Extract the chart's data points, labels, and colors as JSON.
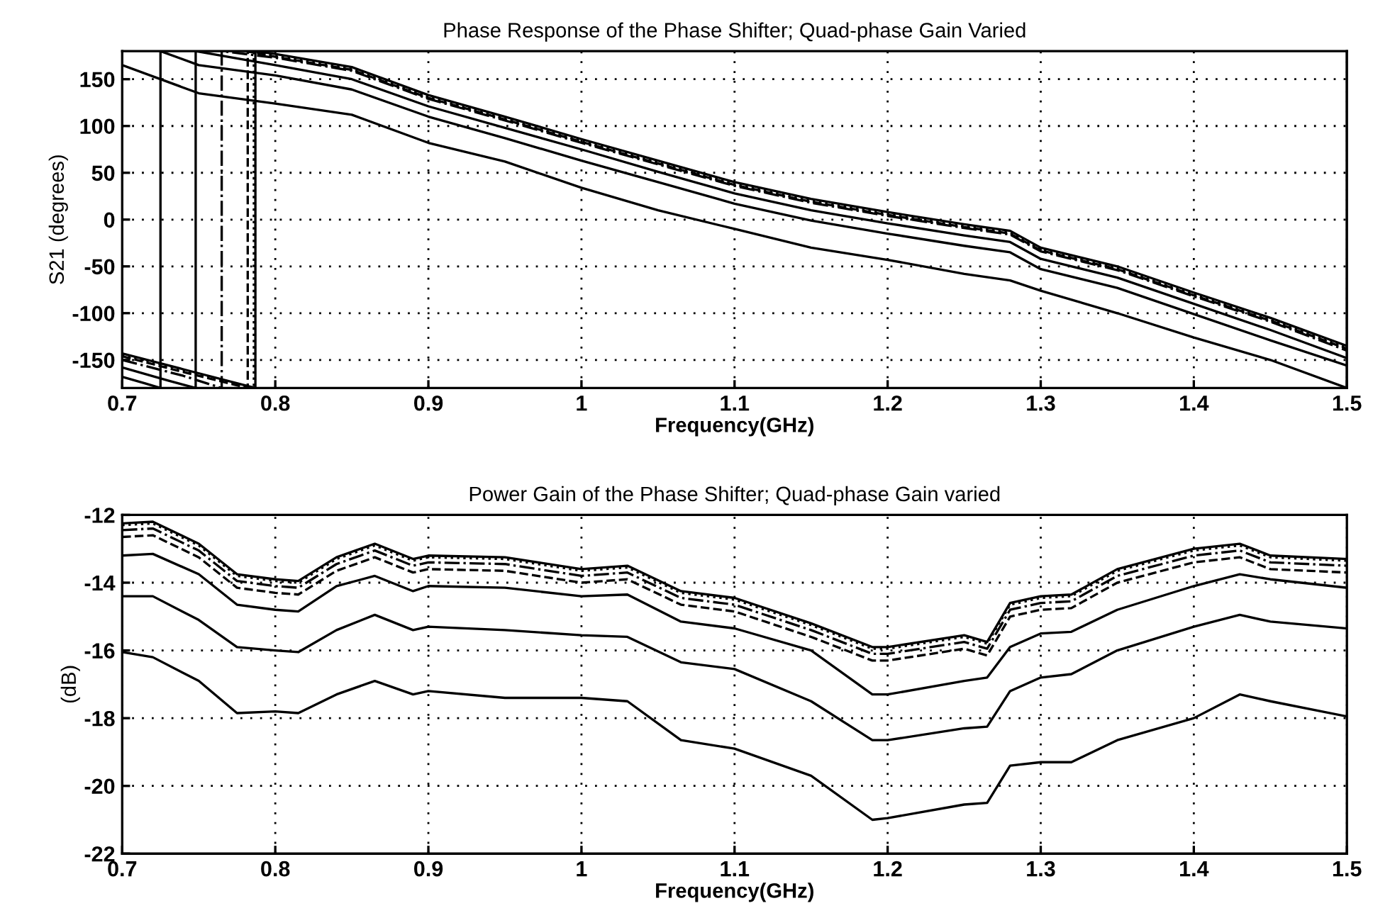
{
  "chart_data": [
    {
      "type": "line",
      "title": "Phase Response of the Phase Shifter; Quad-phase Gain Varied",
      "xlabel": "Frequency(GHz)",
      "ylabel": "S21 (degrees)",
      "xlim": [
        0.7,
        1.5
      ],
      "ylim": [
        -180,
        180
      ],
      "xticks": [
        0.7,
        0.8,
        0.9,
        1,
        1.1,
        1.2,
        1.3,
        1.4,
        1.5
      ],
      "yticks": [
        -150,
        -100,
        -50,
        0,
        50,
        100,
        150
      ],
      "grid": true,
      "series": [
        {
          "color": "#000000",
          "line_style": "solid",
          "x": [
            0.7,
            0.74,
            0.787,
            0.787,
            0.8,
            0.85,
            0.9,
            0.95,
            1.0,
            1.05,
            1.1,
            1.15,
            1.2,
            1.25,
            1.28,
            1.3,
            1.35,
            1.4,
            1.45,
            1.5
          ],
          "values": [
            -143,
            -160,
            -180,
            180,
            177,
            163,
            133,
            110,
            86,
            63,
            40,
            22,
            8,
            -5,
            -12,
            -30,
            -50,
            -78,
            -105,
            -135
          ]
        },
        {
          "color": "#000000",
          "line_style": "dotted",
          "x": [
            0.7,
            0.74,
            0.786,
            0.786,
            0.8,
            0.85,
            0.9,
            0.95,
            1.0,
            1.05,
            1.1,
            1.15,
            1.2,
            1.25,
            1.28,
            1.3,
            1.35,
            1.4,
            1.45,
            1.5
          ],
          "values": [
            -144,
            -161,
            -180,
            180,
            175,
            161,
            131,
            108,
            84,
            61,
            38,
            20,
            6,
            -7,
            -14,
            -32,
            -52,
            -80,
            -107,
            -137
          ]
        },
        {
          "color": "#000000",
          "line_style": "dashdot",
          "x": [
            0.7,
            0.74,
            0.765,
            0.765,
            0.8,
            0.85,
            0.9,
            0.95,
            1.0,
            1.05,
            1.1,
            1.15,
            1.2,
            1.25,
            1.28,
            1.3,
            1.35,
            1.4,
            1.45,
            1.5
          ],
          "values": [
            -150,
            -167,
            -180,
            180,
            173,
            159,
            129,
            106,
            82,
            59,
            36,
            18,
            4,
            -9,
            -16,
            -34,
            -54,
            -82,
            -109,
            -140
          ]
        },
        {
          "color": "#000000",
          "line_style": "dashed",
          "x": [
            0.7,
            0.74,
            0.782,
            0.782,
            0.8,
            0.85,
            0.9,
            0.95,
            1.0,
            1.05,
            1.1,
            1.15,
            1.2,
            1.25,
            1.28,
            1.3,
            1.35,
            1.4,
            1.45,
            1.5
          ],
          "values": [
            -146,
            -163,
            -180,
            180,
            174,
            160,
            130,
            107,
            83,
            60,
            37,
            19,
            5,
            -8,
            -15,
            -33,
            -53,
            -81,
            -108,
            -138
          ]
        },
        {
          "color": "#000000",
          "line_style": "solid",
          "x": [
            0.7,
            0.73,
            0.748,
            0.748,
            0.8,
            0.85,
            0.9,
            0.95,
            1.0,
            1.05,
            1.1,
            1.15,
            1.2,
            1.25,
            1.28,
            1.3,
            1.35,
            1.4,
            1.45,
            1.5
          ],
          "values": [
            -158,
            -172,
            -180,
            180,
            165,
            150,
            121,
            98,
            75,
            51,
            28,
            10,
            -4,
            -17,
            -24,
            -42,
            -62,
            -90,
            -118,
            -148
          ]
        },
        {
          "color": "#000000",
          "line_style": "solid",
          "x": [
            0.7,
            0.715,
            0.725,
            0.725,
            0.75,
            0.8,
            0.85,
            0.9,
            0.95,
            1.0,
            1.05,
            1.1,
            1.15,
            1.2,
            1.25,
            1.28,
            1.3,
            1.35,
            1.4,
            1.45,
            1.5
          ],
          "values": [
            -168,
            -175,
            -180,
            180,
            165,
            154,
            139,
            110,
            87,
            63,
            40,
            17,
            -1,
            -15,
            -28,
            -35,
            -53,
            -73,
            -101,
            -129,
            -156
          ]
        },
        {
          "color": "#000000",
          "line_style": "solid",
          "x": [
            0.7,
            0.75,
            0.8,
            0.85,
            0.9,
            0.95,
            1.0,
            1.05,
            1.1,
            1.15,
            1.2,
            1.25,
            1.28,
            1.3,
            1.35,
            1.4,
            1.45,
            1.5,
            1.5
          ],
          "values": [
            165,
            135,
            124,
            112,
            82,
            62,
            34,
            10,
            -10,
            -30,
            -43,
            -58,
            -65,
            -76,
            -100,
            -126,
            -150,
            -180,
            180
          ]
        }
      ]
    },
    {
      "type": "line",
      "title": "Power Gain of the Phase Shifter; Quad-phase Gain varied",
      "xlabel": "Frequency(GHz)",
      "ylabel": "(dB)",
      "xlim": [
        0.7,
        1.5
      ],
      "ylim": [
        -22,
        -12
      ],
      "xticks": [
        0.7,
        0.8,
        0.9,
        1,
        1.1,
        1.2,
        1.3,
        1.4,
        1.5
      ],
      "yticks": [
        -22,
        -20,
        -18,
        -16,
        -14,
        -12
      ],
      "grid": true,
      "x": [
        0.7,
        0.72,
        0.75,
        0.775,
        0.8,
        0.815,
        0.84,
        0.865,
        0.89,
        0.9,
        0.95,
        1.0,
        1.03,
        1.065,
        1.1,
        1.15,
        1.19,
        1.2,
        1.25,
        1.265,
        1.28,
        1.3,
        1.32,
        1.35,
        1.4,
        1.43,
        1.45,
        1.5
      ],
      "series": [
        {
          "color": "#000000",
          "line_style": "solid",
          "values": [
            -12.25,
            -12.2,
            -12.85,
            -13.75,
            -13.9,
            -13.95,
            -13.25,
            -12.85,
            -13.3,
            -13.2,
            -13.25,
            -13.6,
            -13.5,
            -14.25,
            -14.45,
            -15.2,
            -15.9,
            -15.9,
            -15.55,
            -15.75,
            -14.6,
            -14.4,
            -14.35,
            -13.6,
            -13.0,
            -12.85,
            -13.2,
            -13.3
          ]
        },
        {
          "color": "#000000",
          "line_style": "dotted",
          "values": [
            -12.3,
            -12.25,
            -12.9,
            -13.8,
            -13.95,
            -14.0,
            -13.3,
            -12.9,
            -13.35,
            -13.25,
            -13.3,
            -13.65,
            -13.55,
            -14.3,
            -14.5,
            -15.25,
            -15.95,
            -15.95,
            -15.6,
            -15.8,
            -14.65,
            -14.45,
            -14.4,
            -13.65,
            -13.05,
            -12.9,
            -13.25,
            -13.35
          ]
        },
        {
          "color": "#000000",
          "line_style": "dashdot",
          "values": [
            -12.45,
            -12.4,
            -13.05,
            -13.95,
            -14.1,
            -14.15,
            -13.45,
            -13.05,
            -13.5,
            -13.4,
            -13.45,
            -13.8,
            -13.7,
            -14.45,
            -14.65,
            -15.4,
            -16.1,
            -16.1,
            -15.75,
            -15.95,
            -14.8,
            -14.6,
            -14.55,
            -13.8,
            -13.2,
            -13.05,
            -13.4,
            -13.5
          ]
        },
        {
          "color": "#000000",
          "line_style": "dashed",
          "values": [
            -12.65,
            -12.6,
            -13.25,
            -14.15,
            -14.3,
            -14.35,
            -13.65,
            -13.25,
            -13.7,
            -13.6,
            -13.65,
            -14.0,
            -13.9,
            -14.65,
            -14.85,
            -15.6,
            -16.3,
            -16.3,
            -15.95,
            -16.15,
            -15.0,
            -14.8,
            -14.75,
            -14.0,
            -13.4,
            -13.25,
            -13.6,
            -13.7
          ]
        },
        {
          "color": "#000000",
          "line_style": "solid",
          "values": [
            -13.2,
            -13.15,
            -13.75,
            -14.65,
            -14.8,
            -14.85,
            -14.1,
            -13.8,
            -14.25,
            -14.1,
            -14.15,
            -14.4,
            -14.35,
            -15.15,
            -15.35,
            -16.0,
            -17.3,
            -17.3,
            -16.9,
            -16.8,
            -15.9,
            -15.5,
            -15.45,
            -14.8,
            -14.1,
            -13.75,
            -13.9,
            -14.15
          ]
        },
        {
          "color": "#000000",
          "line_style": "solid",
          "values": [
            -14.4,
            -14.4,
            -15.1,
            -15.9,
            -16.0,
            -16.05,
            -15.4,
            -14.95,
            -15.4,
            -15.3,
            -15.4,
            -15.55,
            -15.6,
            -16.35,
            -16.55,
            -17.5,
            -18.65,
            -18.65,
            -18.3,
            -18.25,
            -17.2,
            -16.8,
            -16.7,
            -16.0,
            -15.3,
            -14.95,
            -15.15,
            -15.35
          ]
        },
        {
          "color": "#000000",
          "line_style": "solid",
          "values": [
            -16.05,
            -16.2,
            -16.9,
            -17.85,
            -17.8,
            -17.85,
            -17.3,
            -16.9,
            -17.3,
            -17.2,
            -17.4,
            -17.4,
            -17.5,
            -18.65,
            -18.9,
            -19.7,
            -21.0,
            -20.95,
            -20.55,
            -20.5,
            -19.4,
            -19.3,
            -19.3,
            -18.65,
            -18.0,
            -17.3,
            -17.5,
            -17.95
          ]
        }
      ]
    }
  ]
}
